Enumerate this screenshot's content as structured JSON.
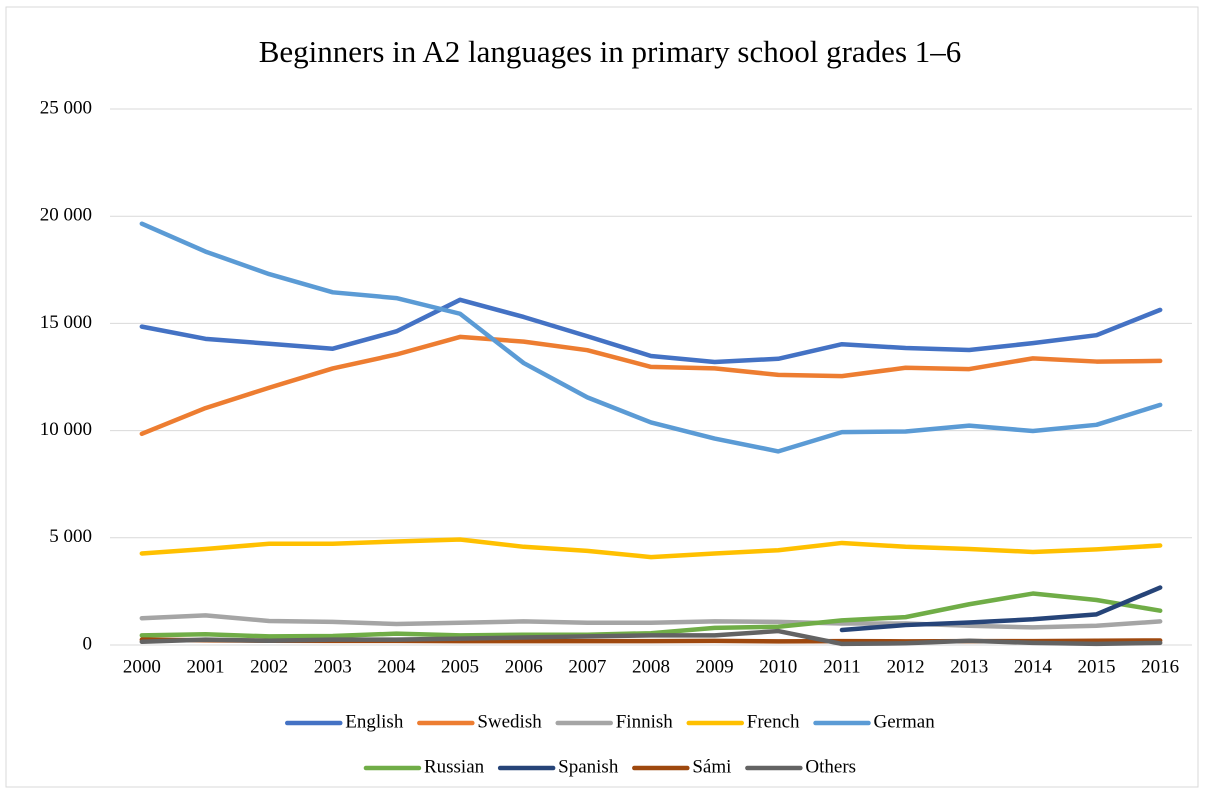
{
  "chart_data": {
    "type": "line",
    "title": "Beginners in A2 languages in primary school grades 1–6",
    "categories": [
      "2000",
      "2001",
      "2002",
      "2003",
      "2004",
      "2005",
      "2006",
      "2007",
      "2008",
      "2009",
      "2010",
      "2011",
      "2012",
      "2013",
      "2014",
      "2015",
      "2016"
    ],
    "series": [
      {
        "name": "English",
        "color": "#4472c4",
        "values": [
          14850,
          14280,
          14050,
          13820,
          14630,
          16100,
          15300,
          14400,
          13480,
          13200,
          13350,
          14030,
          13850,
          13760,
          14080,
          14450,
          15630
        ]
      },
      {
        "name": "Swedish",
        "color": "#ed7d31",
        "values": [
          9850,
          11050,
          12000,
          12900,
          13550,
          14370,
          14150,
          13750,
          12970,
          12900,
          12600,
          12540,
          12930,
          12870,
          13370,
          13220,
          13250
        ]
      },
      {
        "name": "Finnish",
        "color": "#a5a5a5",
        "values": [
          1250,
          1380,
          1120,
          1080,
          980,
          1040,
          1100,
          1040,
          1040,
          1100,
          1080,
          1000,
          1000,
          900,
          820,
          900,
          1100
        ]
      },
      {
        "name": "French",
        "color": "#ffc000",
        "values": [
          4270,
          4480,
          4720,
          4720,
          4830,
          4920,
          4580,
          4390,
          4100,
          4270,
          4420,
          4760,
          4580,
          4480,
          4340,
          4460,
          4640
        ]
      },
      {
        "name": "German",
        "color": "#5b9bd5",
        "values": [
          19650,
          18350,
          17300,
          16450,
          16180,
          15450,
          13150,
          11550,
          10380,
          9630,
          9030,
          9930,
          9960,
          10230,
          9980,
          10270,
          11200
        ]
      },
      {
        "name": "Russian",
        "color": "#70ad47",
        "values": [
          450,
          500,
          400,
          420,
          530,
          450,
          480,
          480,
          550,
          800,
          850,
          1150,
          1300,
          1900,
          2400,
          2100,
          1600
        ]
      },
      {
        "name": "Spanish",
        "color": "#264478",
        "values": [
          null,
          null,
          null,
          null,
          null,
          null,
          null,
          null,
          null,
          null,
          null,
          700,
          930,
          1050,
          1200,
          1430,
          2680
        ]
      },
      {
        "name": "Sámi",
        "color": "#9e480e",
        "values": [
          250,
          220,
          200,
          190,
          190,
          180,
          180,
          180,
          180,
          190,
          170,
          180,
          170,
          180,
          180,
          200,
          210
        ]
      },
      {
        "name": "Others",
        "color": "#636363",
        "values": [
          150,
          250,
          200,
          250,
          250,
          300,
          350,
          400,
          450,
          450,
          650,
          50,
          80,
          200,
          100,
          50,
          100
        ]
      }
    ],
    "ylim": [
      0,
      25000
    ],
    "yticks": [
      {
        "value": 0,
        "label": "0"
      },
      {
        "value": 5000,
        "label": "5 000"
      },
      {
        "value": 10000,
        "label": "10 000"
      },
      {
        "value": 15000,
        "label": "15 000"
      },
      {
        "value": 20000,
        "label": "20 000"
      },
      {
        "value": 25000,
        "label": "25 000"
      }
    ],
    "grid": true,
    "legend": "bottom"
  }
}
